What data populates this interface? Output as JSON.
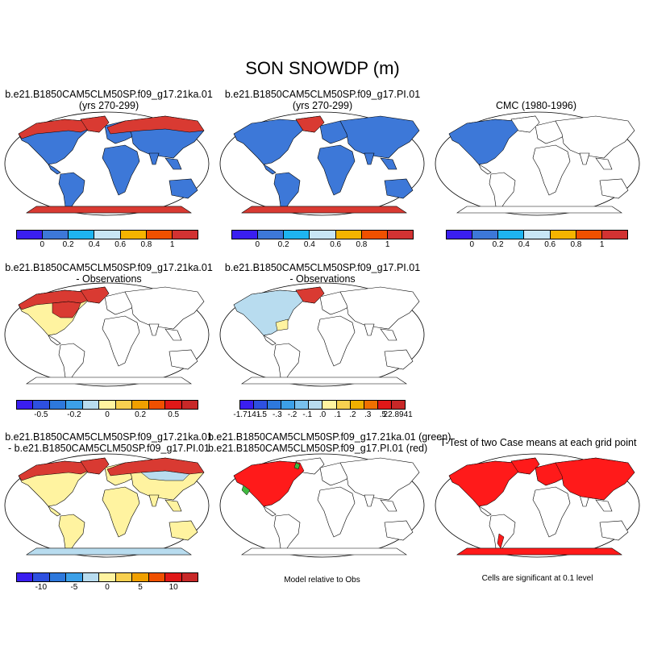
{
  "main_title": "SON SNOWDP (m)",
  "colors": {
    "ocean": "#ffffff",
    "red": "#d93a32",
    "blue": "#3d78d8",
    "yellow": "#fff3a0",
    "lightblue": "#b8dcef",
    "brightred": "#ff1a1a",
    "green": "#3fb83f"
  },
  "panels": [
    {
      "title1": "b.e21.B1850CAM5CLM50SP.f09_g17.21ka.01",
      "title2": "(yrs 270-299)"
    },
    {
      "title1": "b.e21.B1850CAM5CLM50SP.f09_g17.PI.01",
      "title2": "(yrs 270-299)"
    },
    {
      "title1": "CMC (1980-1996)",
      "title2": ""
    },
    {
      "title1": "b.e21.B1850CAM5CLM50SP.f09_g17.21ka.01",
      "title2": "- Observations"
    },
    {
      "title1": "b.e21.B1850CAM5CLM50SP.f09_g17.PI.01",
      "title2": "- Observations"
    },
    {
      "title1": "b.e21.B1850CAM5CLM50SP.f09_g17.21ka.01",
      "title2": "- b.e21.B1850CAM5CLM50SP.f09_g17.PI.01"
    },
    {
      "title1": "b.e21.B1850CAM5CLM50SP.f09_g17.21ka.01 (green)",
      "title2": "b.e21.B1850CAM5CLM50SP.f09_g17.PI.01 (red)"
    },
    {
      "title1": "T-Test of two Case means at each grid point",
      "title2": ""
    }
  ],
  "colorbars": {
    "abs": {
      "colors": [
        "#3a1ef0",
        "#3d78d8",
        "#1eb4f0",
        "#c8e6f5",
        "#f5b400",
        "#f05000",
        "#d23232"
      ],
      "ticks": [
        "0",
        "0.2",
        "0.4",
        "0.6",
        "0.8",
        "1"
      ]
    },
    "diff1": {
      "colors": [
        "#3a1ef0",
        "#2e50e0",
        "#2d78dc",
        "#3ca0e8",
        "#b8dcef",
        "#fff3a0",
        "#f8d050",
        "#f0a000",
        "#f05000",
        "#e01818",
        "#c82828"
      ],
      "ticks": [
        "-0.5",
        "-0.2",
        "0",
        "0.2",
        "0.5"
      ]
    },
    "diff2": {
      "colors": [
        "#3a1ef0",
        "#2e50e0",
        "#2d78dc",
        "#3ca0e8",
        "#78c0ec",
        "#b8dcef",
        "#fff3a0",
        "#f8d050",
        "#f0b000",
        "#f07000",
        "#e01818",
        "#c82828"
      ],
      "ticks": [
        "-1.7141",
        "-.5",
        "-.3",
        "-.2",
        "-.1",
        ".0",
        ".1",
        ".2",
        ".3",
        ".5",
        "22.8941"
      ]
    },
    "diff3": {
      "colors": [
        "#3a1ef0",
        "#2e50e0",
        "#2d78dc",
        "#3ca0e8",
        "#b8dcef",
        "#fff3a0",
        "#f8d050",
        "#f0a000",
        "#f05000",
        "#e01818",
        "#c82828"
      ],
      "ticks": [
        "-10",
        "-5",
        "0",
        "5",
        "10"
      ]
    }
  },
  "notes": {
    "model_rel": "Model relative to Obs",
    "cells_sig": "Cells are significant at 0.1 level"
  }
}
